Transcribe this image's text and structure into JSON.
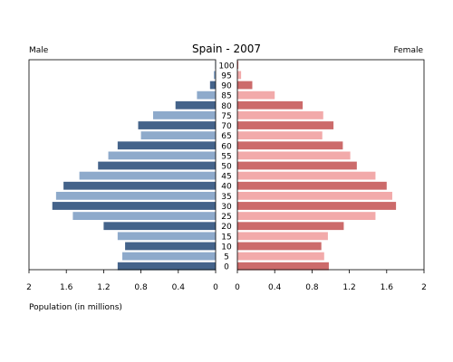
{
  "chart_data": {
    "type": "bar",
    "title": "Spain - 2007",
    "left_label": "Male",
    "right_label": "Female",
    "xlabel": "Population (in millions)",
    "xlim": [
      0,
      2
    ],
    "x_ticks": [
      "2",
      "1.6",
      "1.2",
      "0.8",
      "0.4",
      "0"
    ],
    "x_ticks_right": [
      "0",
      "0.4",
      "0.8",
      "1.2",
      "1.6",
      "2"
    ],
    "categories": [
      "0",
      "5",
      "10",
      "15",
      "20",
      "25",
      "30",
      "35",
      "40",
      "45",
      "50",
      "55",
      "60",
      "65",
      "70",
      "75",
      "80",
      "85",
      "90",
      "95",
      "100"
    ],
    "series": [
      {
        "name": "Male",
        "values": [
          1.05,
          1.0,
          0.97,
          1.05,
          1.2,
          1.53,
          1.75,
          1.71,
          1.63,
          1.46,
          1.26,
          1.15,
          1.05,
          0.8,
          0.83,
          0.67,
          0.43,
          0.2,
          0.06,
          0.02,
          0.005
        ]
      },
      {
        "name": "Female",
        "values": [
          0.98,
          0.93,
          0.9,
          0.97,
          1.14,
          1.48,
          1.7,
          1.66,
          1.6,
          1.48,
          1.28,
          1.21,
          1.13,
          0.91,
          1.03,
          0.92,
          0.7,
          0.4,
          0.16,
          0.04,
          0.01
        ]
      }
    ],
    "colors": {
      "male_dark": "#44638a",
      "male_light": "#8eaacb",
      "female_dark": "#cc6b6b",
      "female_light": "#f2aaaa"
    },
    "grid": false
  }
}
